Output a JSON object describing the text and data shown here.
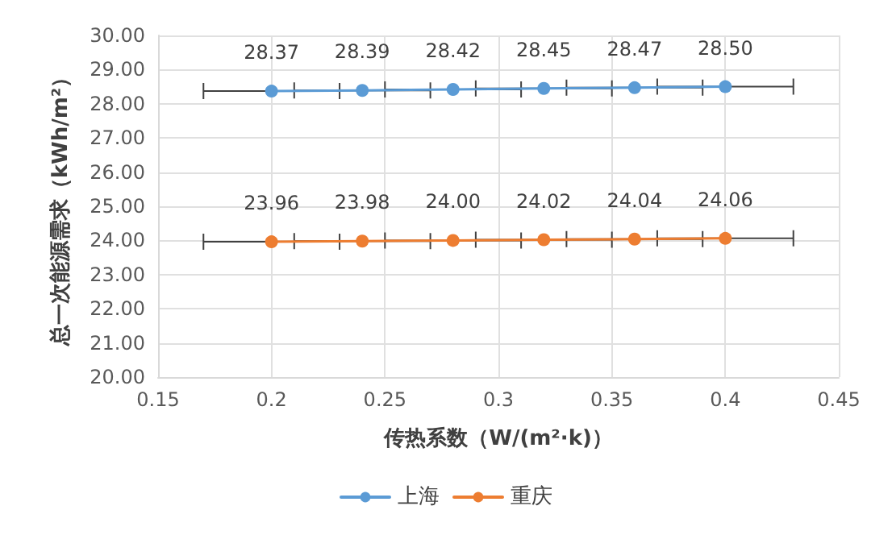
{
  "chart_data": {
    "type": "line",
    "xlabel": "传热系数（W/(m²·k)）",
    "ylabel": "总一次能源需求（kWh/m²）",
    "x": [
      0.2,
      0.24,
      0.28,
      0.32,
      0.36,
      0.4
    ],
    "series": [
      {
        "name": "上海",
        "color": "#5b9bd5",
        "values": [
          28.37,
          28.39,
          28.42,
          28.45,
          28.47,
          28.5
        ],
        "value_labels": [
          "28.37",
          "28.39",
          "28.42",
          "28.45",
          "28.47",
          "28.50"
        ],
        "xerrors": [
          0.03,
          0.03,
          0.03,
          0.03,
          0.03,
          0.03
        ]
      },
      {
        "name": "重庆",
        "color": "#ed7d31",
        "values": [
          23.96,
          23.98,
          24.0,
          24.02,
          24.04,
          24.06
        ],
        "value_labels": [
          "23.96",
          "23.98",
          "24.00",
          "24.02",
          "24.04",
          "24.06"
        ],
        "xerrors": [
          0.03,
          0.03,
          0.03,
          0.03,
          0.03,
          0.03
        ]
      }
    ],
    "xlim": [
      0.15,
      0.45
    ],
    "xticks": [
      0.15,
      0.2,
      0.25,
      0.3,
      0.35,
      0.4,
      0.45
    ],
    "ylim": [
      20,
      30
    ],
    "yticks": [
      {
        "value": 20,
        "label": "20.00"
      },
      {
        "value": 21,
        "label": "21.00"
      },
      {
        "value": 22,
        "label": "22.00"
      },
      {
        "value": 23,
        "label": "23.00"
      },
      {
        "value": 24,
        "label": "24.00"
      },
      {
        "value": 25,
        "label": "25.00"
      },
      {
        "value": 26,
        "label": "26.00"
      },
      {
        "value": 27,
        "label": "27.00"
      },
      {
        "value": 28,
        "label": "28.00"
      },
      {
        "value": 29,
        "label": "29.00"
      },
      {
        "value": 30,
        "label": "30.00"
      }
    ],
    "grid": true,
    "legend": "bottom",
    "marker": "circle",
    "line_style": "solid"
  }
}
